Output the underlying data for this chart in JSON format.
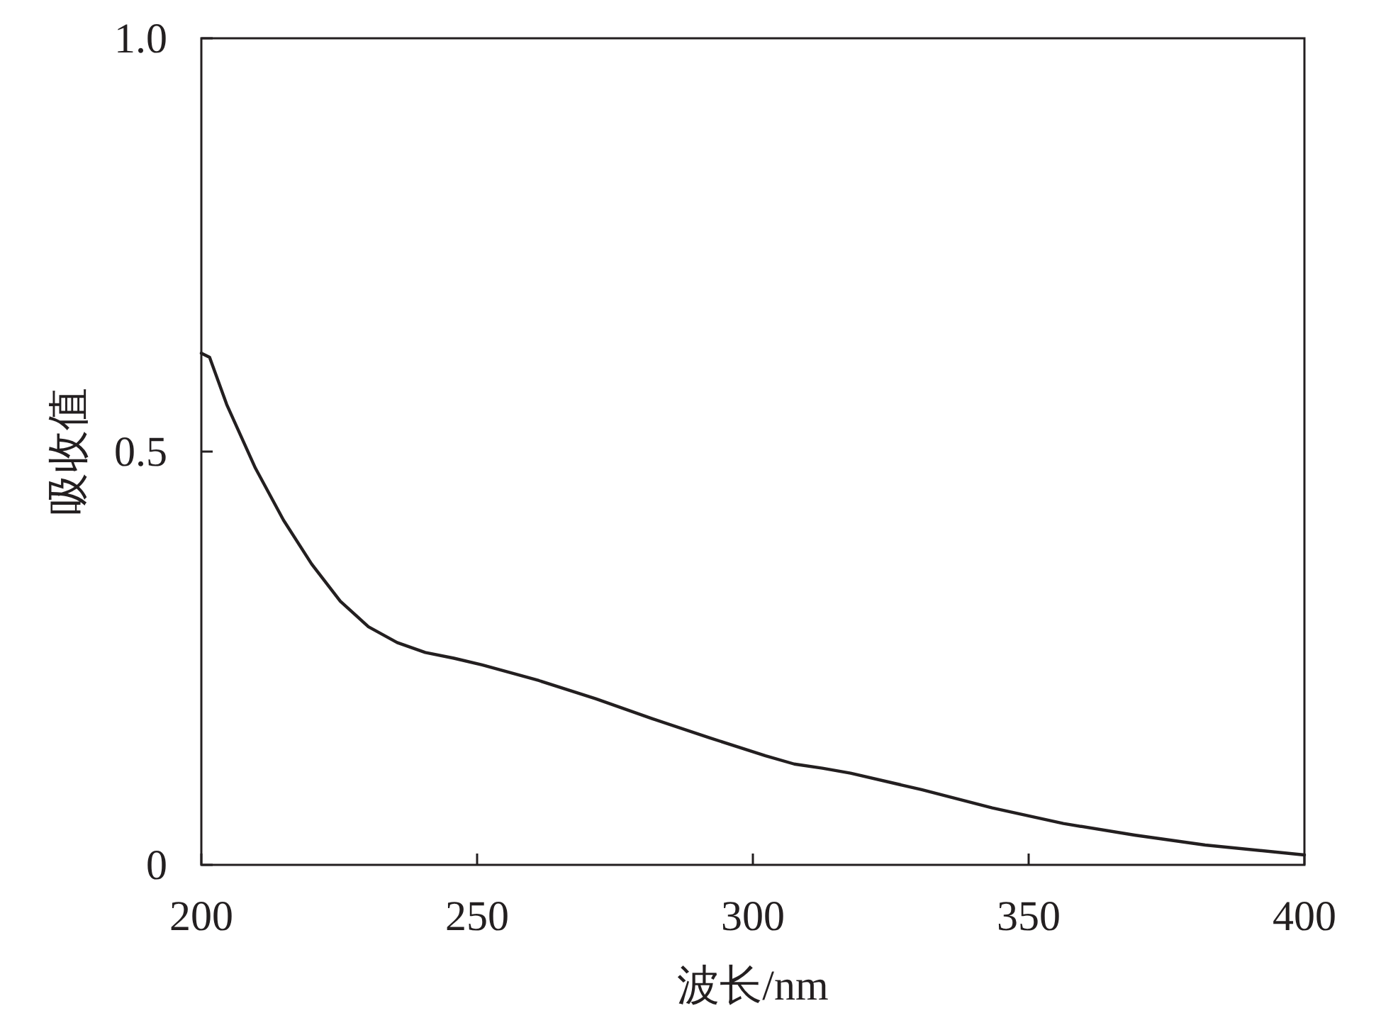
{
  "chart_data": {
    "type": "line",
    "xlabel": "波长/nm",
    "ylabel": "吸收值",
    "x": [
      200,
      201.5,
      204.6,
      209.8,
      214.9,
      220,
      225.2,
      230.3,
      235.5,
      240.6,
      245.8,
      250.9,
      261.2,
      271.5,
      281.7,
      292,
      302.3,
      307.5,
      312.6,
      317.7,
      330.6,
      343.4,
      356.3,
      369.2,
      382,
      400
    ],
    "values": [
      0.619,
      0.614,
      0.557,
      0.48,
      0.417,
      0.364,
      0.319,
      0.288,
      0.269,
      0.257,
      0.25,
      0.242,
      0.223,
      0.201,
      0.177,
      0.154,
      0.132,
      0.122,
      0.117,
      0.111,
      0.091,
      0.069,
      0.05,
      0.036,
      0.024,
      0.012
    ],
    "color": "#231f20",
    "xlim": [
      200,
      400
    ],
    "ylim": [
      0,
      1
    ],
    "xticks": [
      200,
      250,
      300,
      350,
      400
    ],
    "yticks": [
      0,
      0.5,
      {
        "value": 1,
        "label": "1.0"
      }
    ]
  }
}
